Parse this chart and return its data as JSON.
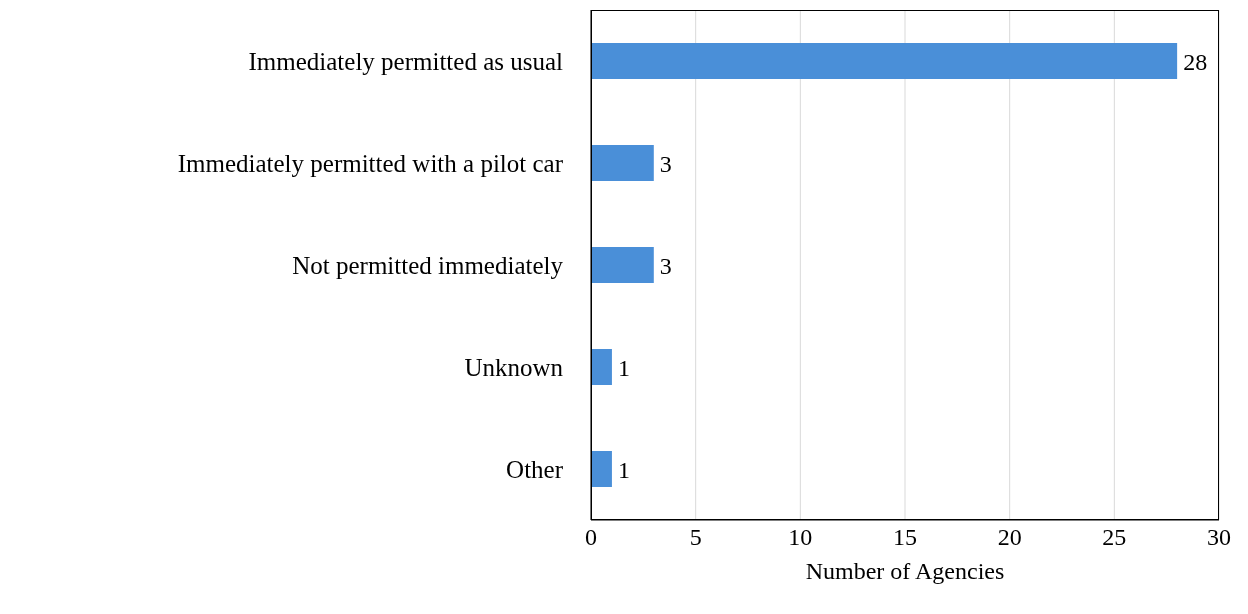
{
  "chart_data": {
    "type": "bar",
    "orientation": "horizontal",
    "xlabel": "Number of Agencies",
    "categories": [
      "Immediately permitted as usual",
      "Immediately permitted with a pilot car",
      "Not permitted immediately",
      "Unknown",
      "Other"
    ],
    "values": [
      28,
      3,
      3,
      1,
      1
    ],
    "color": "#4a8fd8",
    "xlim": [
      0,
      30
    ],
    "xticks": [
      0,
      5,
      10,
      15,
      20,
      25,
      30
    ],
    "grid": "x",
    "data_labels": true
  }
}
